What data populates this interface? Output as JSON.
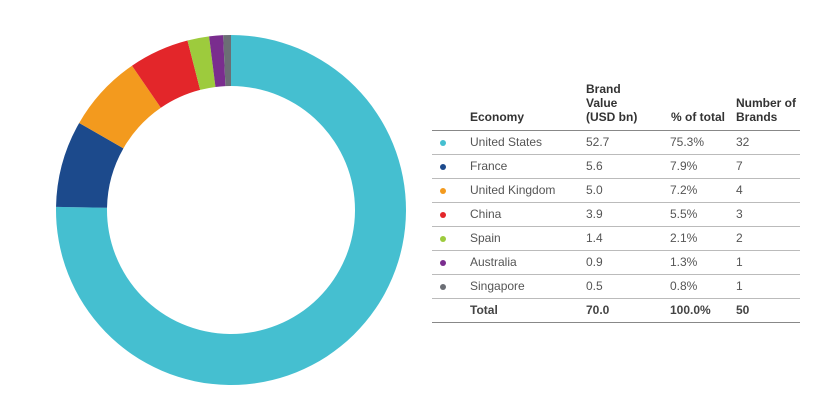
{
  "chart_data": {
    "type": "pie",
    "donut": true,
    "columns": [
      "Economy",
      "Brand Value (USD bn)",
      "% of total",
      "Number of Brands"
    ],
    "rows": [
      {
        "economy": "United States",
        "color": "#45bfd0",
        "value": 52.7,
        "value_label": "52.7",
        "share": "75.3%",
        "brands": 32
      },
      {
        "economy": "France",
        "color": "#1c4a8c",
        "value": 5.6,
        "value_label": "5.6",
        "share": "7.9%",
        "brands": 7
      },
      {
        "economy": "United Kingdom",
        "color": "#f39a1e",
        "value": 5.0,
        "value_label": "5.0",
        "share": "7.2%",
        "brands": 4
      },
      {
        "economy": "China",
        "color": "#e3262a",
        "value": 3.9,
        "value_label": "3.9",
        "share": "5.5%",
        "brands": 3
      },
      {
        "economy": "Spain",
        "color": "#9dcb3d",
        "value": 1.4,
        "value_label": "1.4",
        "share": "2.1%",
        "brands": 2
      },
      {
        "economy": "Australia",
        "color": "#7a2d8e",
        "value": 0.9,
        "value_label": "0.9",
        "share": "1.3%",
        "brands": 1
      },
      {
        "economy": "Singapore",
        "color": "#6b6e75",
        "value": 0.5,
        "value_label": "0.5",
        "share": "0.8%",
        "brands": 1
      }
    ],
    "total": {
      "label": "Total",
      "value": "70.0",
      "share": "100.0%",
      "brands": 50
    }
  }
}
